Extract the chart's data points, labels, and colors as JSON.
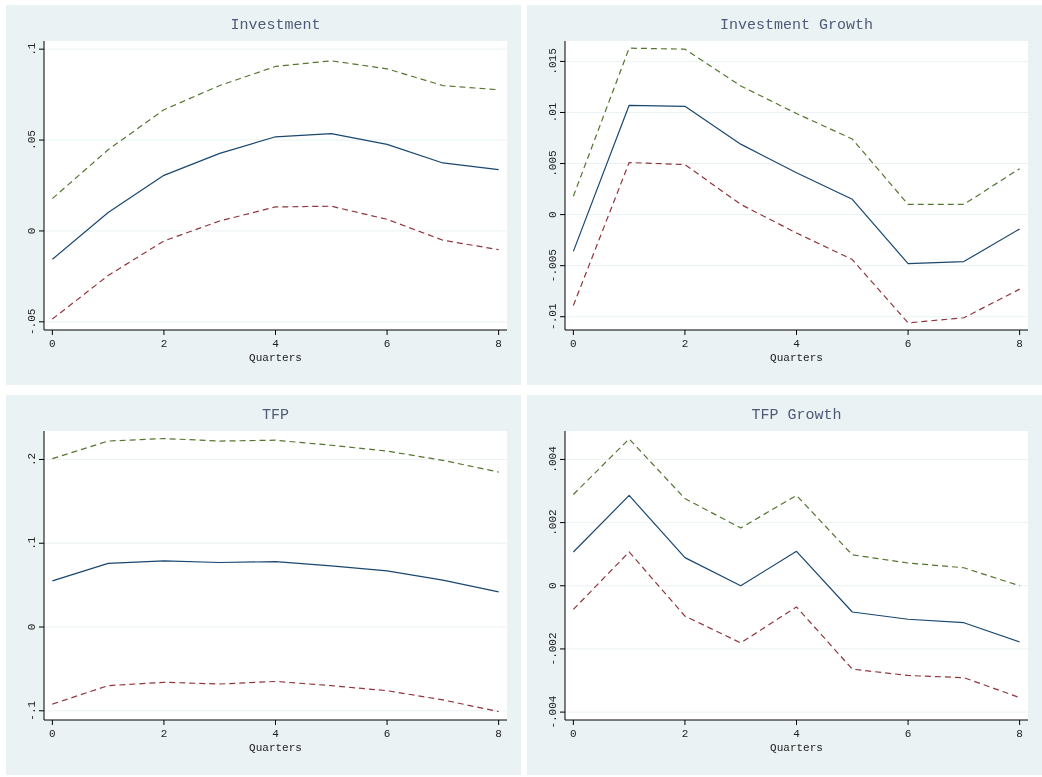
{
  "chart_data": [
    {
      "type": "line",
      "title": "Investment",
      "xlabel": "Quarters",
      "x": [
        0,
        1,
        2,
        3,
        4,
        5,
        6,
        7,
        8
      ],
      "xlim": [
        -0.15,
        8.15
      ],
      "xticks": [
        0,
        2,
        4,
        6,
        8
      ],
      "ylim": [
        -0.0545,
        0.1045
      ],
      "yticks": [
        {
          "value": -0.05,
          "label": "-.05"
        },
        {
          "value": 0,
          "label": "0"
        },
        {
          "value": 0.05,
          "label": ".05"
        },
        {
          "value": 0.1,
          "label": ".1"
        }
      ],
      "grid": "y",
      "series": [
        {
          "color": "#1a476f",
          "line_style": "solid",
          "values": [
            -0.0156,
            0.0101,
            0.0306,
            0.0427,
            0.0518,
            0.0535,
            0.0476,
            0.0374,
            0.0337
          ]
        },
        {
          "color": "#55752f",
          "line_style": "dashed",
          "values": [
            0.0178,
            0.0447,
            0.0667,
            0.08,
            0.0905,
            0.0936,
            0.0892,
            0.08,
            0.0777
          ]
        },
        {
          "color": "#90353b",
          "line_style": "dashed",
          "values": [
            -0.0485,
            -0.0245,
            -0.0055,
            0.0055,
            0.0132,
            0.0136,
            0.0064,
            -0.0051,
            -0.0103
          ]
        }
      ]
    },
    {
      "type": "line",
      "title": "Investment Growth",
      "xlabel": "Quarters",
      "x": [
        0,
        1,
        2,
        3,
        4,
        5,
        6,
        7,
        8
      ],
      "xlim": [
        -0.15,
        8.15
      ],
      "xticks": [
        0,
        2,
        4,
        6,
        8
      ],
      "ylim": [
        -0.0113,
        0.017
      ],
      "yticks": [
        {
          "value": -0.01,
          "label": "-.01"
        },
        {
          "value": -0.005,
          "label": "-.005"
        },
        {
          "value": 0,
          "label": "0"
        },
        {
          "value": 0.005,
          "label": ".005"
        },
        {
          "value": 0.01,
          "label": ".01"
        },
        {
          "value": 0.015,
          "label": ".015"
        }
      ],
      "grid": "y",
      "series": [
        {
          "color": "#1a476f",
          "line_style": "solid",
          "values": [
            -0.0036,
            0.0107,
            0.0106,
            0.0069,
            0.0041,
            0.0015,
            -0.0048,
            -0.0046,
            -0.0014
          ]
        },
        {
          "color": "#55752f",
          "line_style": "dashed",
          "values": [
            0.0018,
            0.0163,
            0.0162,
            0.0126,
            0.0099,
            0.0074,
            0.001,
            0.001,
            0.0045
          ]
        },
        {
          "color": "#90353b",
          "line_style": "dashed",
          "values": [
            -0.0089,
            0.0051,
            0.0049,
            0.001,
            -0.0018,
            -0.0044,
            -0.0106,
            -0.0101,
            -0.0073
          ]
        }
      ]
    },
    {
      "type": "line",
      "title": "TFP",
      "xlabel": "Quarters",
      "x": [
        0,
        1,
        2,
        3,
        4,
        5,
        6,
        7,
        8
      ],
      "xlim": [
        -0.15,
        8.15
      ],
      "xticks": [
        0,
        2,
        4,
        6,
        8
      ],
      "ylim": [
        -0.111,
        0.234
      ],
      "yticks": [
        {
          "value": -0.1,
          "label": "-.1"
        },
        {
          "value": 0,
          "label": "0"
        },
        {
          "value": 0.1,
          "label": ".1"
        },
        {
          "value": 0.2,
          "label": ".2"
        }
      ],
      "grid": "y",
      "series": [
        {
          "color": "#1a476f",
          "line_style": "solid",
          "values": [
            0.055,
            0.076,
            0.079,
            0.077,
            0.078,
            0.073,
            0.067,
            0.056,
            0.042
          ]
        },
        {
          "color": "#55752f",
          "line_style": "dashed",
          "values": [
            0.201,
            0.222,
            0.225,
            0.222,
            0.223,
            0.217,
            0.21,
            0.199,
            0.185
          ]
        },
        {
          "color": "#90353b",
          "line_style": "dashed",
          "values": [
            -0.092,
            -0.07,
            -0.066,
            -0.068,
            -0.065,
            -0.07,
            -0.076,
            -0.087,
            -0.101
          ]
        }
      ]
    },
    {
      "type": "line",
      "title": "TFP Growth",
      "xlabel": "Quarters",
      "x": [
        0,
        1,
        2,
        3,
        4,
        5,
        6,
        7,
        8
      ],
      "xlim": [
        -0.15,
        8.15
      ],
      "xticks": [
        0,
        2,
        4,
        6,
        8
      ],
      "ylim": [
        -0.00425,
        0.0049
      ],
      "yticks": [
        {
          "value": -0.004,
          "label": "-.004"
        },
        {
          "value": -0.002,
          "label": "-.002"
        },
        {
          "value": 0,
          "label": "0"
        },
        {
          "value": 0.002,
          "label": ".002"
        },
        {
          "value": 0.004,
          "label": ".004"
        }
      ],
      "grid": "y",
      "series": [
        {
          "color": "#1a476f",
          "line_style": "solid",
          "values": [
            0.00107,
            0.00286,
            0.00089,
            0,
            0.00109,
            -0.00083,
            -0.00106,
            -0.00117,
            -0.00178
          ]
        },
        {
          "color": "#55752f",
          "line_style": "dashed",
          "values": [
            0.00289,
            0.00465,
            0.00276,
            0.00183,
            0.00286,
            0.00098,
            0.00072,
            0.00057,
            0
          ]
        },
        {
          "color": "#90353b",
          "line_style": "dashed",
          "values": [
            -0.00075,
            0.00107,
            -0.00096,
            -0.00181,
            -0.00067,
            -0.00264,
            -0.00284,
            -0.00291,
            -0.00354
          ]
        }
      ]
    }
  ]
}
